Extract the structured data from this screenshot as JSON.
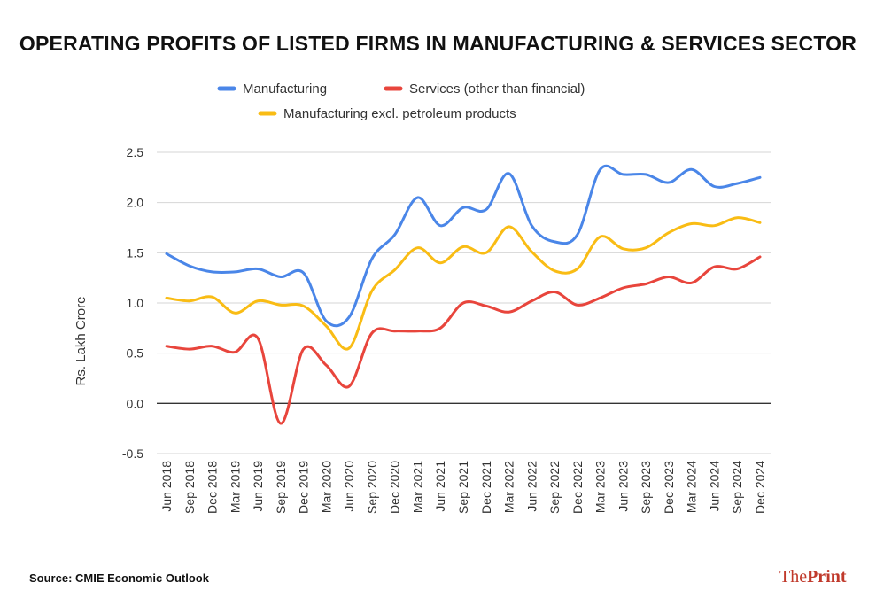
{
  "title": "OPERATING PROFITS OF LISTED FIRMS IN MANUFACTURING & SERVICES SECTOR",
  "source": "Source: CMIE Economic Outlook",
  "brand": {
    "part1": "The",
    "part2": "Print"
  },
  "chart_data": {
    "type": "line",
    "title": "OPERATING PROFITS OF LISTED FIRMS IN MANUFACTURING & SERVICES SECTOR",
    "xlabel": "",
    "ylabel": "Rs. Lakh Crore",
    "ylim": [
      -0.5,
      2.5
    ],
    "yticks": [
      "2.5",
      "2.0",
      "1.5",
      "1.0",
      "0.5",
      "0.0",
      "-0.5"
    ],
    "grid": true,
    "legend": "top",
    "x": [
      "Jun 2018",
      "Sep 2018",
      "Dec 2018",
      "Mar 2019",
      "Jun 2019",
      "Sep 2019",
      "Dec 2019",
      "Mar 2020",
      "Jun 2020",
      "Sep 2020",
      "Dec 2020",
      "Mar 2021",
      "Jun 2021",
      "Sep 2021",
      "Dec 2021",
      "Mar 2022",
      "Jun 2022",
      "Sep 2022",
      "Dec 2022",
      "Mar 2023",
      "Jun 2023",
      "Sep 2023",
      "Dec 2023",
      "Mar 2024",
      "Jun 2024",
      "Sep 2024",
      "Dec 2024"
    ],
    "series": [
      {
        "name": "Manufacturing",
        "color": "#4a86e8",
        "values": [
          1.49,
          1.37,
          1.31,
          1.31,
          1.34,
          1.26,
          1.3,
          0.82,
          0.86,
          1.44,
          1.68,
          2.05,
          1.77,
          1.95,
          1.93,
          2.29,
          1.77,
          1.61,
          1.68,
          2.33,
          2.28,
          2.28,
          2.2,
          2.33,
          2.16,
          2.19,
          2.25
        ]
      },
      {
        "name": "Services (other than financial)",
        "color": "#e8453c",
        "values": [
          0.57,
          0.54,
          0.57,
          0.51,
          0.65,
          -0.2,
          0.54,
          0.38,
          0.17,
          0.7,
          0.72,
          0.72,
          0.75,
          1.0,
          0.97,
          0.91,
          1.02,
          1.11,
          0.98,
          1.05,
          1.15,
          1.19,
          1.26,
          1.2,
          1.36,
          1.34,
          1.46
        ]
      },
      {
        "name": "Manufacturing excl. petroleum products",
        "color": "#f9bc14",
        "values": [
          1.05,
          1.02,
          1.06,
          0.9,
          1.02,
          0.98,
          0.97,
          0.77,
          0.55,
          1.12,
          1.33,
          1.55,
          1.4,
          1.56,
          1.5,
          1.76,
          1.51,
          1.32,
          1.34,
          1.66,
          1.54,
          1.55,
          1.7,
          1.79,
          1.77,
          1.85,
          1.8
        ]
      }
    ]
  }
}
